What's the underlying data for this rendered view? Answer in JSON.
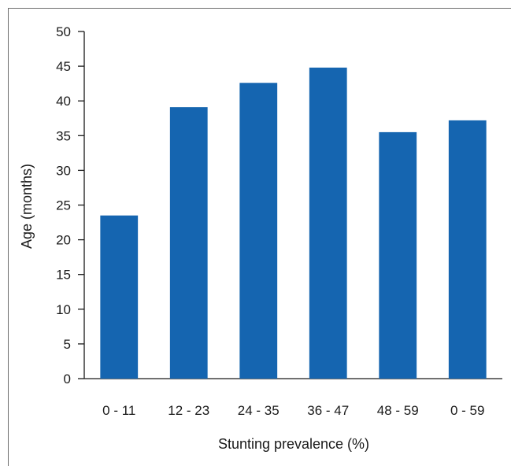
{
  "chart_data": {
    "type": "bar",
    "categories": [
      "0 - 11",
      "12 - 23",
      "24 - 35",
      "36 - 47",
      "48 - 59",
      "0 - 59"
    ],
    "values": [
      23.5,
      39.1,
      42.6,
      44.8,
      35.5,
      37.2
    ],
    "xlabel": "Stunting prevalence (%)",
    "ylabel": "Age (months)",
    "ylim": [
      0,
      50
    ],
    "yticks": [
      "0",
      "5",
      "10",
      "15",
      "20",
      "25",
      "30",
      "35",
      "40",
      "45",
      "50"
    ],
    "grid": false,
    "bar_color": "#1565b0"
  }
}
